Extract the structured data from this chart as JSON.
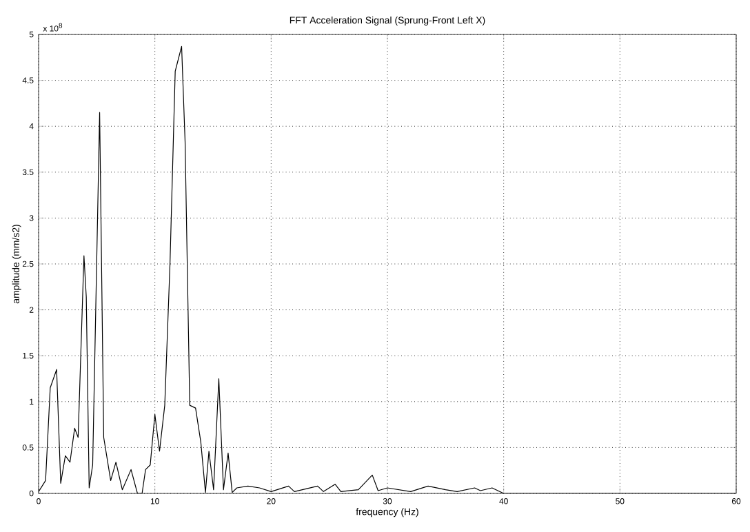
{
  "chart_data": {
    "type": "line",
    "title": "FFT Acceleration Signal (Sprung-Front Left X)",
    "xlabel": "frequency (Hz)",
    "ylabel": "amplitude (mm/s2)",
    "annotations": [
      "x 10$^{8}$"
    ],
    "xlim": [
      0,
      60
    ],
    "ylim": [
      0,
      5
    ],
    "xticks": [
      0,
      10,
      20,
      30,
      40,
      50,
      60
    ],
    "yticks": [
      0,
      0.5,
      1,
      1.5,
      2,
      2.5,
      3,
      3.5,
      4,
      4.5,
      5
    ],
    "grid": true,
    "line_style": "solid",
    "series": [
      {
        "color": "#000000",
        "x": [
          0,
          0.6,
          1.0,
          1.55,
          1.9,
          2.3,
          2.7,
          3.1,
          3.4,
          3.9,
          4.1,
          4.35,
          4.65,
          5.25,
          5.6,
          6.2,
          6.65,
          7.2,
          7.95,
          8.5,
          8.9,
          9.2,
          9.6,
          10.0,
          10.4,
          10.85,
          11.3,
          11.75,
          12.3,
          12.6,
          13.0,
          13.5,
          13.95,
          14.35,
          14.65,
          15.05,
          15.5,
          15.9,
          16.3,
          16.65,
          17.05,
          18,
          19,
          20,
          21.5,
          22,
          23,
          24,
          24.5,
          25.5,
          26,
          27.5,
          28.7,
          29.2,
          30,
          31,
          32,
          33.5,
          35,
          36,
          37.5,
          38,
          39,
          40,
          50,
          60
        ],
        "values": [
          0.02,
          0.14,
          1.15,
          1.35,
          0.11,
          0.41,
          0.34,
          0.71,
          0.61,
          2.59,
          2.14,
          0.06,
          0.31,
          4.15,
          0.61,
          0.14,
          0.34,
          0.04,
          0.26,
          0,
          0,
          0.26,
          0.31,
          0.86,
          0.46,
          0.96,
          2.5,
          4.6,
          4.87,
          3.83,
          0.96,
          0.93,
          0.56,
          0.01,
          0.46,
          0.04,
          1.25,
          0.04,
          0.44,
          0.01,
          0.06,
          0.08,
          0.06,
          0.02,
          0.08,
          0.02,
          0.05,
          0.08,
          0.02,
          0.1,
          0.02,
          0.04,
          0.2,
          0.03,
          0.06,
          0.04,
          0.02,
          0.08,
          0.04,
          0.02,
          0.06,
          0.03,
          0.06,
          0,
          0,
          0
        ]
      }
    ]
  }
}
